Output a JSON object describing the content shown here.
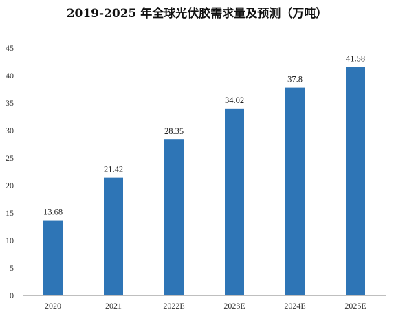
{
  "chart_data": {
    "type": "bar",
    "title": "2019-2025 年全球光伏胶需求量及预测（万吨）",
    "categories": [
      "2020",
      "2021",
      "2022E",
      "2023E",
      "2024E",
      "2025E"
    ],
    "values": [
      13.68,
      21.42,
      28.35,
      34.02,
      37.8,
      41.58
    ],
    "data_labels": [
      "13.68",
      "21.42",
      "28.35",
      "34.02",
      "37.8",
      "41.58"
    ],
    "y_ticks": [
      "0",
      "5",
      "10",
      "15",
      "20",
      "25",
      "30",
      "35",
      "40",
      "45"
    ],
    "ylim": [
      0,
      45
    ],
    "xlabel": "",
    "ylabel": "",
    "grid": false,
    "bar_color": "#2e75b6",
    "axis_color": "#bfbfbf"
  }
}
